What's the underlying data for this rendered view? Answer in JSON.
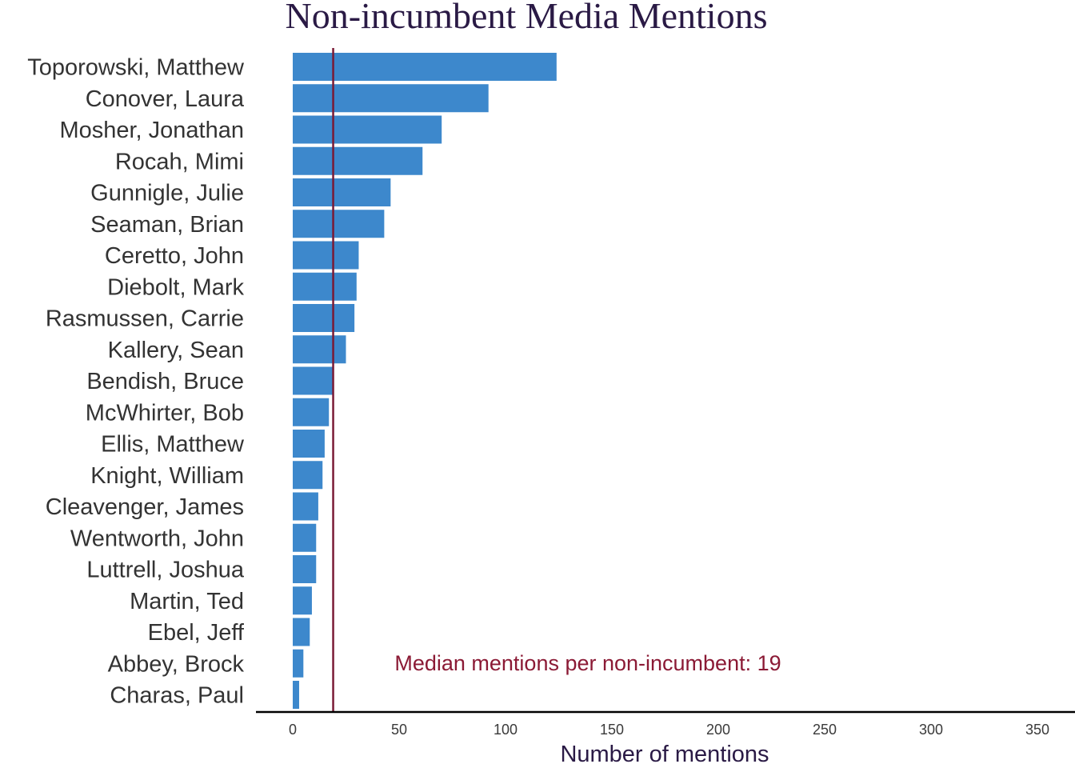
{
  "chart_data": {
    "type": "bar",
    "orientation": "horizontal",
    "title": "Non-incumbent Media Mentions",
    "xlabel": "Number of mentions",
    "ylabel": "",
    "categories": [
      "Toporowski, Matthew",
      "Conover, Laura",
      "Mosher, Jonathan",
      "Rocah, Mimi",
      "Gunnigle, Julie",
      "Seaman, Brian",
      "Ceretto, John",
      "Diebolt, Mark",
      "Rasmussen, Carrie",
      "Kallery, Sean",
      "Bendish, Bruce",
      "McWhirter, Bob",
      "Ellis, Matthew",
      "Knight, William",
      "Cleavenger, James",
      "Wentworth, John",
      "Luttrell, Joshua",
      "Martin, Ted",
      "Ebel, Jeff",
      "Abbey, Brock",
      "Charas, Paul"
    ],
    "values": [
      124,
      92,
      70,
      61,
      46,
      43,
      31,
      30,
      29,
      25,
      19,
      17,
      15,
      14,
      12,
      11,
      11,
      9,
      8,
      5,
      3
    ],
    "xlim": [
      0,
      350
    ],
    "xticks": [
      0,
      50,
      100,
      150,
      200,
      250,
      300,
      350
    ],
    "median": 19,
    "annotation": "Median mentions per non-incumbent: 19",
    "grid": false,
    "colors": {
      "bar": "#3d88cc",
      "median_line": "#7a1a35",
      "annotation": "#8b1a35",
      "title": "#2a1a45",
      "category_label": "#333333",
      "tick_label": "#3a3a3a",
      "axis_line": "#000000"
    }
  }
}
